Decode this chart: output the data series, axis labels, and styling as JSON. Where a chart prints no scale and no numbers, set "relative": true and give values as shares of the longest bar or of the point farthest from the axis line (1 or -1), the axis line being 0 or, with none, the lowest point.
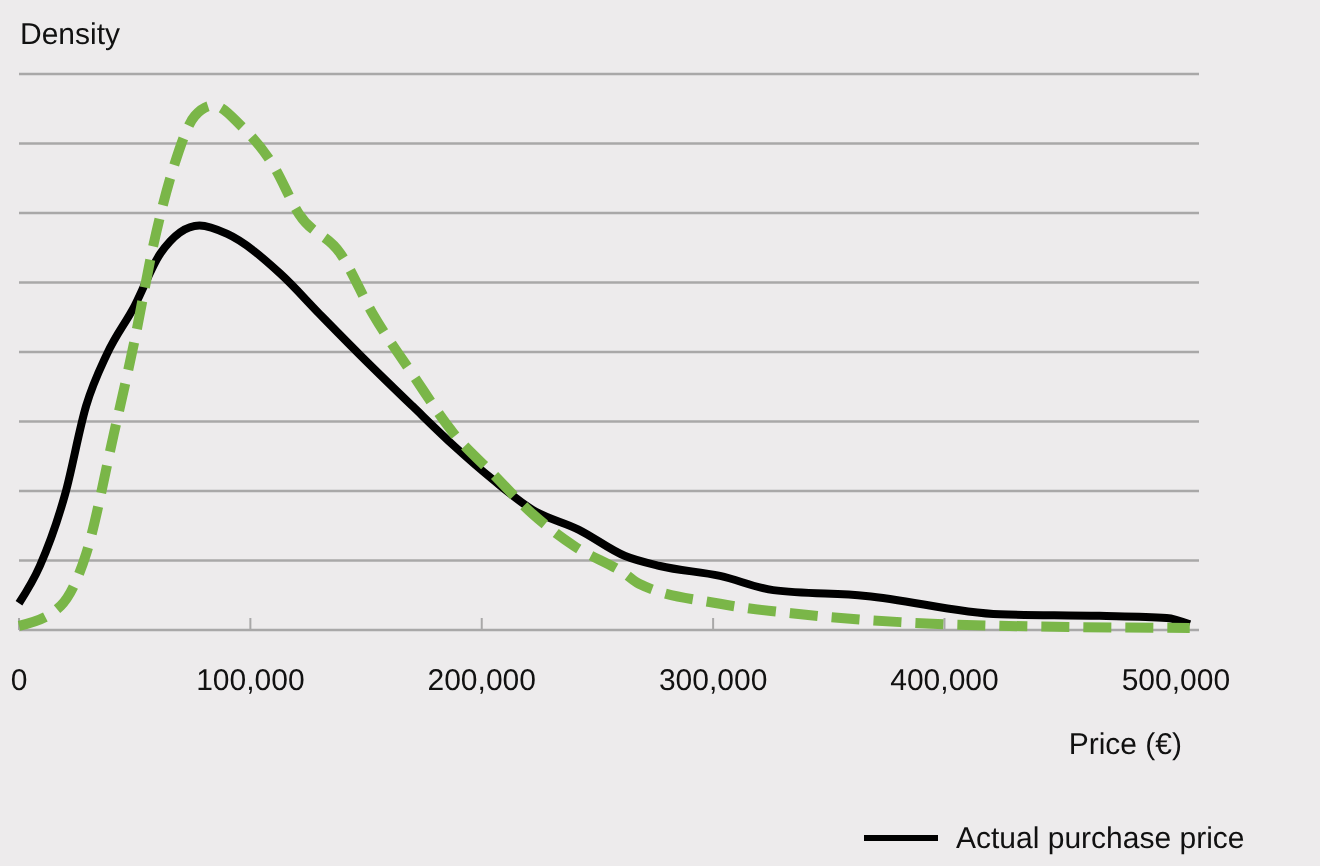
{
  "chart_data": {
    "type": "line",
    "relative": true,
    "ylabel": "Density",
    "xlabel": "Price (€)",
    "xlim": [
      0,
      510000
    ],
    "xticks": [
      0,
      {
        "value": 100000,
        "label": "100,000"
      },
      {
        "value": 200000,
        "label": "200,000"
      },
      {
        "value": 300000,
        "label": "300,000"
      },
      {
        "value": 400000,
        "label": "400,000"
      },
      {
        "value": 500000,
        "label": "500,000"
      }
    ],
    "grid": "y",
    "legend": "bottom right",
    "series": [
      {
        "name": "Actual purchase price",
        "color": "#000000",
        "line_style": "solid",
        "x": [
          0,
          9000,
          20000,
          29000,
          38000,
          50000,
          61000,
          78000,
          90000,
          113000,
          130000,
          147000,
          170000,
          188000,
          205000,
          222000,
          242000,
          262000,
          277000,
          303000,
          326000,
          366000,
          424000,
          467000,
          496000,
          506000
        ],
        "values": [
          0.051,
          0.122,
          0.26,
          0.427,
          0.526,
          0.618,
          0.717,
          0.771,
          0.755,
          0.679,
          0.602,
          0.526,
          0.427,
          0.351,
          0.286,
          0.229,
          0.191,
          0.141,
          0.122,
          0.103,
          0.076,
          0.065,
          0.03,
          0.027,
          0.023,
          0.011
        ]
      },
      {
        "color": "#7ab648",
        "line_style": "dashed",
        "x": [
          0,
          18000,
          29000,
          41000,
          50000,
          58000,
          67000,
          76000,
          84000,
          96000,
          110000,
          121000,
          139000,
          153000,
          170000,
          188000,
          205000,
          222000,
          240000,
          262000,
          268000,
          303000,
          338000,
          381000,
          424000,
          506000
        ],
        "values": [
          0.008,
          0.046,
          0.145,
          0.374,
          0.553,
          0.732,
          0.885,
          0.98,
          1,
          0.961,
          0.885,
          0.793,
          0.717,
          0.602,
          0.488,
          0.374,
          0.297,
          0.221,
          0.16,
          0.107,
          0.088,
          0.05,
          0.03,
          0.015,
          0.008,
          0.004
        ]
      }
    ]
  }
}
